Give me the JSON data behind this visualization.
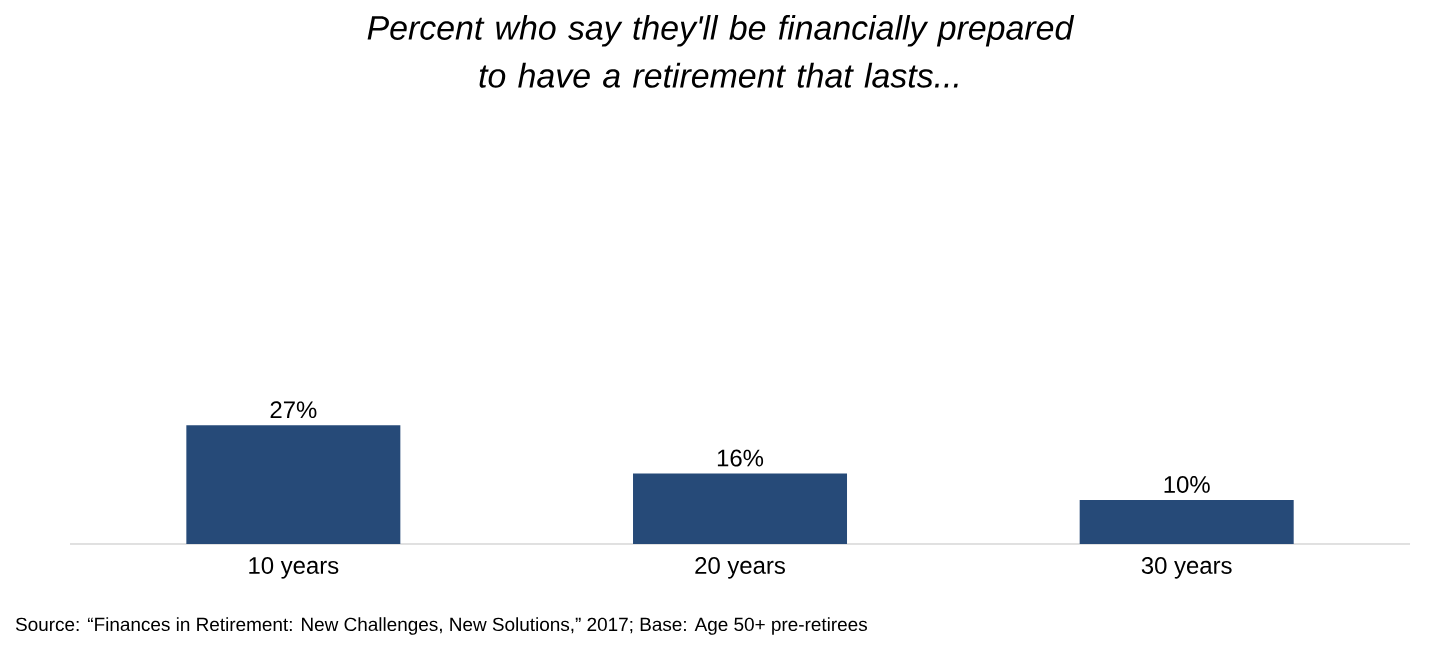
{
  "chart_data": {
    "type": "bar",
    "title": "Percent who say they'll be financially prepared\nto have a retirement that lasts...",
    "categories": [
      "10 years",
      "20 years",
      "30 years"
    ],
    "values": [
      27,
      16,
      10
    ],
    "value_labels": [
      "27%",
      "16%",
      "10%"
    ],
    "color": "#264a78",
    "annotations": [
      "Source: “Finances in Retirement: New Challenges, New Solutions,” 2017; Base: Age 50+ pre-retirees"
    ]
  }
}
